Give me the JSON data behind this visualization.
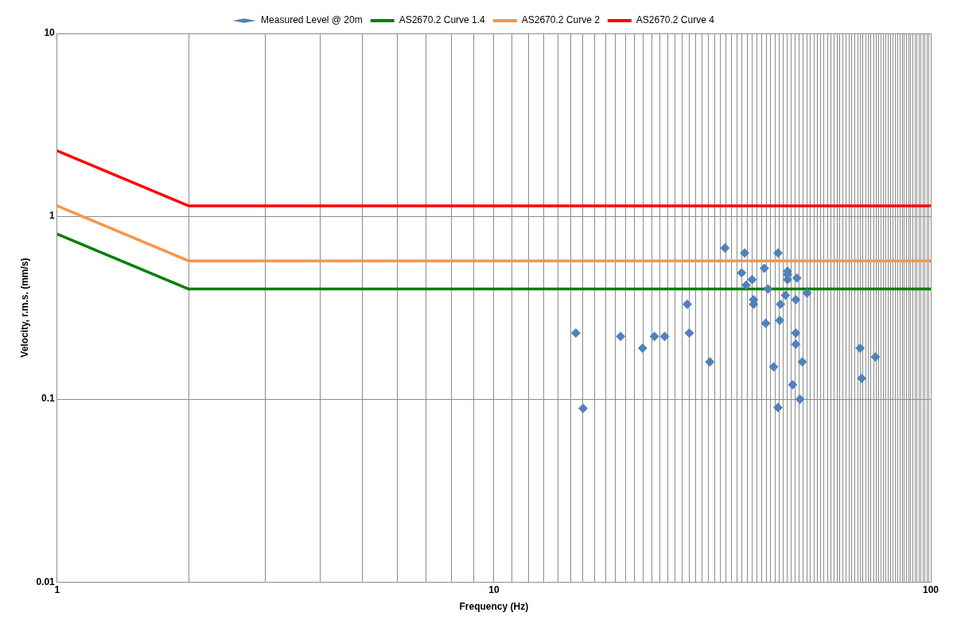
{
  "chart_data": {
    "type": "scatter",
    "xlabel": "Frequency (Hz)",
    "ylabel": "Velocity, r.m.s. (mm/s)",
    "log": "xy",
    "grid": true,
    "legend": "top",
    "xlim": [
      1,
      100
    ],
    "ylim": [
      0.01,
      10
    ],
    "xticks": [
      1,
      {
        "value": 2,
        "label": null
      },
      {
        "value": 3,
        "label": null
      },
      {
        "value": 4,
        "label": null
      },
      {
        "value": 5,
        "label": null
      },
      {
        "value": 6,
        "label": null
      },
      {
        "value": 7,
        "label": null
      },
      {
        "value": 8,
        "label": null
      },
      {
        "value": 9,
        "label": null
      },
      10,
      {
        "value": 11,
        "label": null
      },
      {
        "value": 12,
        "label": null
      },
      {
        "value": 13,
        "label": null
      },
      {
        "value": 14,
        "label": null
      },
      {
        "value": 15,
        "label": null
      },
      {
        "value": 16,
        "label": null
      },
      {
        "value": 17,
        "label": null
      },
      {
        "value": 18,
        "label": null
      },
      {
        "value": 19,
        "label": null
      },
      {
        "value": 20,
        "label": null
      },
      {
        "value": 21,
        "label": null
      },
      {
        "value": 22,
        "label": null
      },
      {
        "value": 23,
        "label": null
      },
      {
        "value": 24,
        "label": null
      },
      {
        "value": 25,
        "label": null
      },
      {
        "value": 26,
        "label": null
      },
      {
        "value": 27,
        "label": null
      },
      {
        "value": 28,
        "label": null
      },
      {
        "value": 29,
        "label": null
      },
      {
        "value": 30,
        "label": null
      },
      {
        "value": 31,
        "label": null
      },
      {
        "value": 32,
        "label": null
      },
      {
        "value": 33,
        "label": null
      },
      {
        "value": 34,
        "label": null
      },
      {
        "value": 35,
        "label": null
      },
      {
        "value": 36,
        "label": null
      },
      {
        "value": 37,
        "label": null
      },
      {
        "value": 38,
        "label": null
      },
      {
        "value": 39,
        "label": null
      },
      {
        "value": 40,
        "label": null
      },
      {
        "value": 41,
        "label": null
      },
      {
        "value": 42,
        "label": null
      },
      {
        "value": 43,
        "label": null
      },
      {
        "value": 44,
        "label": null
      },
      {
        "value": 45,
        "label": null
      },
      {
        "value": 46,
        "label": null
      },
      {
        "value": 47,
        "label": null
      },
      {
        "value": 48,
        "label": null
      },
      {
        "value": 49,
        "label": null
      },
      {
        "value": 50,
        "label": null
      },
      {
        "value": 51,
        "label": null
      },
      {
        "value": 52,
        "label": null
      },
      {
        "value": 53,
        "label": null
      },
      {
        "value": 54,
        "label": null
      },
      {
        "value": 55,
        "label": null
      },
      {
        "value": 56,
        "label": null
      },
      {
        "value": 57,
        "label": null
      },
      {
        "value": 58,
        "label": null
      },
      {
        "value": 59,
        "label": null
      },
      {
        "value": 60,
        "label": null
      },
      {
        "value": 61,
        "label": null
      },
      {
        "value": 62,
        "label": null
      },
      {
        "value": 63,
        "label": null
      },
      {
        "value": 64,
        "label": null
      },
      {
        "value": 65,
        "label": null
      },
      {
        "value": 66,
        "label": null
      },
      {
        "value": 67,
        "label": null
      },
      {
        "value": 68,
        "label": null
      },
      {
        "value": 69,
        "label": null
      },
      {
        "value": 70,
        "label": null
      },
      {
        "value": 71,
        "label": null
      },
      {
        "value": 72,
        "label": null
      },
      {
        "value": 73,
        "label": null
      },
      {
        "value": 74,
        "label": null
      },
      {
        "value": 75,
        "label": null
      },
      {
        "value": 76,
        "label": null
      },
      {
        "value": 77,
        "label": null
      },
      {
        "value": 78,
        "label": null
      },
      {
        "value": 79,
        "label": null
      },
      {
        "value": 80,
        "label": null
      },
      {
        "value": 81,
        "label": null
      },
      {
        "value": 82,
        "label": null
      },
      {
        "value": 83,
        "label": null
      },
      {
        "value": 84,
        "label": null
      },
      {
        "value": 85,
        "label": null
      },
      {
        "value": 86,
        "label": null
      },
      {
        "value": 87,
        "label": null
      },
      {
        "value": 88,
        "label": null
      },
      {
        "value": 89,
        "label": null
      },
      {
        "value": 90,
        "label": null
      },
      {
        "value": 91,
        "label": null
      },
      {
        "value": 92,
        "label": null
      },
      {
        "value": 93,
        "label": null
      },
      {
        "value": 94,
        "label": null
      },
      {
        "value": 95,
        "label": null
      },
      {
        "value": 96,
        "label": null
      },
      {
        "value": 97,
        "label": null
      },
      {
        "value": 98,
        "label": null
      },
      {
        "value": 99,
        "label": null
      },
      100
    ],
    "yticks": [
      0.01,
      0.1,
      1,
      10
    ],
    "series": [
      {
        "name": "Measured Level @ 20m",
        "type": "scatter",
        "marker": "diamond",
        "color": "#4f81bd",
        "x": [
          15.4,
          16.0,
          19.5,
          21.9,
          23.3,
          24.6,
          27.7,
          28.0,
          31.2,
          33.8,
          36.9,
          37.5,
          37.8,
          39.0,
          39.3,
          39.3,
          41.6,
          41.9,
          42.4,
          43.7,
          44.7,
          44.7,
          45.1,
          45.3,
          46.5,
          47.0,
          47.0,
          47.0,
          48.3,
          49.1,
          49.1,
          49.1,
          49.4,
          50.2,
          50.8,
          52.1,
          68.9,
          69.5,
          74.7
        ],
        "values": [
          0.23,
          0.089,
          0.22,
          0.19,
          0.22,
          0.22,
          0.33,
          0.23,
          0.16,
          0.67,
          0.49,
          0.63,
          0.42,
          0.45,
          0.35,
          0.33,
          0.52,
          0.26,
          0.4,
          0.15,
          0.63,
          0.09,
          0.27,
          0.33,
          0.37,
          0.5,
          0.48,
          0.45,
          0.12,
          0.35,
          0.23,
          0.2,
          0.46,
          0.1,
          0.16,
          0.38,
          0.19,
          0.13,
          0.17
        ]
      },
      {
        "name": "AS2670.2 Curve 1.4",
        "type": "line",
        "marker": "none",
        "color": "#008000",
        "x": [
          1,
          2,
          100
        ],
        "values": [
          0.8,
          0.4,
          0.4
        ]
      },
      {
        "name": "AS2670.2 Curve 2",
        "type": "line",
        "marker": "none",
        "color": "#f79646",
        "x": [
          1,
          2,
          100
        ],
        "values": [
          1.14,
          0.57,
          0.57
        ]
      },
      {
        "name": "AS2670.2 Curve 4",
        "type": "line",
        "marker": "none",
        "color": "#ff0000",
        "x": [
          1,
          2,
          100
        ],
        "values": [
          2.28,
          1.14,
          1.14
        ]
      }
    ]
  }
}
